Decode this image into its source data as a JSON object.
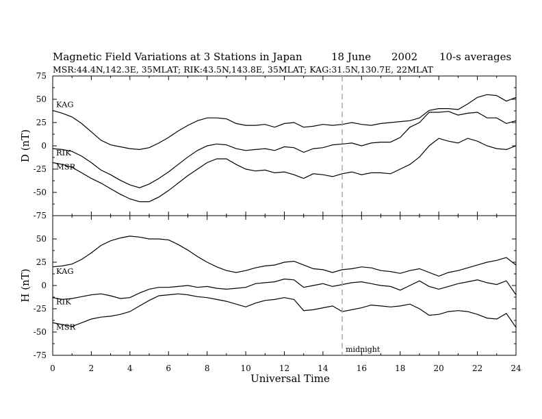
{
  "header": {
    "title_left": "Magnetic Field Variations at 3 Stations in Japan",
    "title_date": "18 June",
    "title_year": "2002",
    "title_avg": "10-s averages",
    "subtitle": "MSR:44.4N,142.3E, 35MLAT;  RIK:43.5N,143.8E, 35MLAT;  KAG:31.5N,130.7E, 22MLAT"
  },
  "colors": {
    "line": "#000000",
    "midnight_line": "#aaaaaa",
    "background": "#ffffff"
  },
  "chart_data": [
    {
      "type": "line",
      "ylabel": "D (nT)",
      "ylim": [
        -75,
        75
      ],
      "yticks": [
        -75,
        -50,
        -25,
        0,
        25,
        50,
        75
      ],
      "xlim": [
        0,
        24
      ],
      "series": [
        {
          "name": "KAG",
          "x": [
            0,
            0.5,
            1,
            1.5,
            2,
            2.5,
            3,
            3.5,
            4,
            4.5,
            5,
            5.5,
            6,
            6.5,
            7,
            7.5,
            8,
            8.5,
            9,
            9.5,
            10,
            10.5,
            11,
            11.5,
            12,
            12.5,
            13,
            13.5,
            14,
            14.5,
            15,
            15.5,
            16,
            16.5,
            17,
            17.5,
            18,
            18.5,
            19,
            19.5,
            20,
            20.5,
            21,
            21.5,
            22,
            22.5,
            23,
            23.5,
            24
          ],
          "values": [
            38,
            35,
            31,
            24,
            15,
            6,
            1,
            -1,
            -3,
            -4,
            -2,
            3,
            9,
            16,
            22,
            27,
            30,
            30,
            29,
            24,
            22,
            22,
            23,
            20,
            24,
            25,
            20,
            21,
            23,
            22,
            23,
            25,
            23,
            22,
            24,
            25,
            26,
            27,
            30,
            38,
            40,
            40,
            39,
            45,
            52,
            55,
            54,
            48,
            52
          ]
        },
        {
          "name": "RIK",
          "x": [
            0,
            0.5,
            1,
            1.5,
            2,
            2.5,
            3,
            3.5,
            4,
            4.5,
            5,
            5.5,
            6,
            6.5,
            7,
            7.5,
            8,
            8.5,
            9,
            9.5,
            10,
            10.5,
            11,
            11.5,
            12,
            12.5,
            13,
            13.5,
            14,
            14.5,
            15,
            15.5,
            16,
            16.5,
            17,
            17.5,
            18,
            18.5,
            19,
            19.5,
            20,
            20.5,
            21,
            21.5,
            22,
            22.5,
            23,
            23.5,
            24
          ],
          "values": [
            -3,
            -4,
            -6,
            -11,
            -18,
            -26,
            -31,
            -37,
            -42,
            -45,
            -41,
            -35,
            -28,
            -20,
            -12,
            -5,
            0,
            2,
            1,
            -3,
            -5,
            -4,
            -3,
            -5,
            -1,
            -2,
            -7,
            -3,
            -2,
            1,
            2,
            3,
            0,
            3,
            4,
            4,
            9,
            20,
            25,
            36,
            36,
            37,
            33,
            35,
            36,
            30,
            30,
            24,
            27
          ]
        },
        {
          "name": "MSR",
          "x": [
            0,
            0.5,
            1,
            1.5,
            2,
            2.5,
            3,
            3.5,
            4,
            4.5,
            5,
            5.5,
            6,
            6.5,
            7,
            7.5,
            8,
            8.5,
            9,
            9.5,
            10,
            10.5,
            11,
            11.5,
            12,
            12.5,
            13,
            13.5,
            14,
            14.5,
            15,
            15.5,
            16,
            16.5,
            17,
            17.5,
            18,
            18.5,
            19,
            19.5,
            20,
            20.5,
            21,
            21.5,
            22,
            22.5,
            23,
            23.5,
            24
          ],
          "values": [
            -18,
            -20,
            -23,
            -29,
            -35,
            -40,
            -46,
            -52,
            -57,
            -60,
            -60,
            -55,
            -48,
            -40,
            -32,
            -25,
            -18,
            -14,
            -14,
            -20,
            -25,
            -27,
            -26,
            -29,
            -28,
            -31,
            -35,
            -30,
            -31,
            -33,
            -30,
            -28,
            -31,
            -29,
            -29,
            -30,
            -25,
            -20,
            -12,
            0,
            8,
            5,
            3,
            8,
            5,
            0,
            -3,
            -4,
            0
          ]
        }
      ]
    },
    {
      "type": "line",
      "ylabel": "H (nT)",
      "xlabel": "Universal Time",
      "ylim": [
        -75,
        75
      ],
      "yticks": [
        -75,
        -50,
        -25,
        0,
        25,
        50
      ],
      "xlim": [
        0,
        24
      ],
      "xticks": [
        0,
        2,
        4,
        6,
        8,
        10,
        12,
        14,
        16,
        18,
        20,
        22,
        24
      ],
      "series": [
        {
          "name": "KAG",
          "x": [
            0,
            0.5,
            1,
            1.5,
            2,
            2.5,
            3,
            3.5,
            4,
            4.5,
            5,
            5.5,
            6,
            6.5,
            7,
            7.5,
            8,
            8.5,
            9,
            9.5,
            10,
            10.5,
            11,
            11.5,
            12,
            12.5,
            13,
            13.5,
            14,
            14.5,
            15,
            15.5,
            16,
            16.5,
            17,
            17.5,
            18,
            18.5,
            19,
            19.5,
            20,
            20.5,
            21,
            21.5,
            22,
            22.5,
            23,
            23.5,
            24
          ],
          "values": [
            20,
            21,
            23,
            28,
            35,
            43,
            48,
            51,
            53,
            52,
            50,
            50,
            49,
            44,
            38,
            31,
            25,
            20,
            16,
            14,
            16,
            19,
            21,
            22,
            25,
            26,
            22,
            18,
            17,
            14,
            17,
            18,
            20,
            19,
            16,
            15,
            13,
            16,
            18,
            14,
            10,
            14,
            16,
            19,
            22,
            25,
            27,
            30,
            22
          ]
        },
        {
          "name": "RIK",
          "x": [
            0,
            0.5,
            1,
            1.5,
            2,
            2.5,
            3,
            3.5,
            4,
            4.5,
            5,
            5.5,
            6,
            6.5,
            7,
            7.5,
            8,
            8.5,
            9,
            9.5,
            10,
            10.5,
            11,
            11.5,
            12,
            12.5,
            13,
            13.5,
            14,
            14.5,
            15,
            15.5,
            16,
            16.5,
            17,
            17.5,
            18,
            18.5,
            19,
            19.5,
            20,
            20.5,
            21,
            21.5,
            22,
            22.5,
            23,
            23.5,
            24
          ],
          "values": [
            -13,
            -15,
            -14,
            -12,
            -10,
            -9,
            -11,
            -14,
            -13,
            -8,
            -4,
            -2,
            -2,
            -1,
            0,
            -2,
            -1,
            -3,
            -4,
            -3,
            -2,
            2,
            3,
            4,
            7,
            6,
            -2,
            0,
            2,
            -1,
            1,
            3,
            4,
            2,
            0,
            -1,
            -5,
            0,
            5,
            -1,
            -4,
            -1,
            2,
            4,
            6,
            3,
            1,
            5,
            -10
          ]
        },
        {
          "name": "MSR",
          "x": [
            0,
            0.5,
            1,
            1.5,
            2,
            2.5,
            3,
            3.5,
            4,
            4.5,
            5,
            5.5,
            6,
            6.5,
            7,
            7.5,
            8,
            8.5,
            9,
            9.5,
            10,
            10.5,
            11,
            11.5,
            12,
            12.5,
            13,
            13.5,
            14,
            14.5,
            15,
            15.5,
            16,
            16.5,
            17,
            17.5,
            18,
            18.5,
            19,
            19.5,
            20,
            20.5,
            21,
            21.5,
            22,
            22.5,
            23,
            23.5,
            24
          ],
          "values": [
            -40,
            -42,
            -44,
            -40,
            -36,
            -34,
            -33,
            -31,
            -28,
            -22,
            -16,
            -11,
            -10,
            -9,
            -10,
            -12,
            -13,
            -15,
            -17,
            -20,
            -23,
            -19,
            -16,
            -15,
            -13,
            -15,
            -27,
            -26,
            -24,
            -22,
            -28,
            -26,
            -24,
            -21,
            -22,
            -23,
            -22,
            -20,
            -25,
            -32,
            -31,
            -28,
            -27,
            -28,
            -31,
            -35,
            -36,
            -30,
            -45
          ]
        }
      ]
    }
  ],
  "annotations": {
    "midnight_label": "midnight",
    "midnight_x": 15
  }
}
